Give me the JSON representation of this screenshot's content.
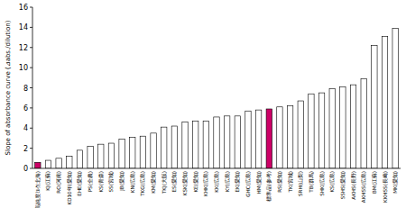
{
  "chart_data": {
    "type": "bar",
    "y_label": "Slope of absorbance curve (⊿abs./dilution)",
    "categories": [
      "高純度ﾐﾙｸ(北海)",
      "KJ(江蘇)",
      "RO(河南)",
      "KD10年(愛知)",
      "EHE(愛知)",
      "PS(全農)",
      "KS(青森)",
      "SS(宮城)",
      "JB(愛知)",
      "KN(広島)",
      "TKG(広島)",
      "KM(愛知)",
      "TKJ(大阪)",
      "ES(愛知)",
      "KSK(愛知)",
      "KE(愛知)",
      "KHK(広島)",
      "KK(広島)",
      "KY(広島)",
      "EK(愛知)",
      "GHC(広島)",
      "HM(愛知)",
      "標準品(参考)",
      "RS(愛知)",
      "TK(宮城)",
      "SRH(山梨)",
      "TB(群馬)",
      "SHK(広島)",
      "KS(広島)",
      "SSHS(愛知)",
      "AKHS(長野)",
      "AKHSS(広島)",
      "BM(江蘇)",
      "KKHSS(長崎)",
      "MK(愛知)"
    ],
    "values": [
      0.6,
      0.8,
      1.0,
      1.2,
      1.8,
      2.2,
      2.4,
      2.5,
      2.9,
      3.1,
      3.2,
      3.5,
      4.1,
      4.2,
      4.6,
      4.7,
      4.7,
      5.1,
      5.2,
      5.2,
      5.7,
      5.8,
      5.9,
      6.1,
      6.2,
      6.7,
      7.4,
      7.5,
      7.9,
      8.1,
      8.3,
      8.9,
      12.2,
      13.1,
      13.9
    ],
    "colors": [
      "#cc0066",
      "#ffffff",
      "#ffffff",
      "#ffffff",
      "#ffffff",
      "#ffffff",
      "#ffffff",
      "#ffffff",
      "#ffffff",
      "#ffffff",
      "#ffffff",
      "#ffffff",
      "#ffffff",
      "#ffffff",
      "#ffffff",
      "#ffffff",
      "#ffffff",
      "#ffffff",
      "#ffffff",
      "#ffffff",
      "#ffffff",
      "#ffffff",
      "#cc0066",
      "#ffffff",
      "#ffffff",
      "#ffffff",
      "#ffffff",
      "#ffffff",
      "#ffffff",
      "#ffffff",
      "#ffffff",
      "#ffffff",
      "#ffffff",
      "#ffffff",
      "#ffffff"
    ],
    "ylim": [
      0,
      16
    ],
    "yticks": [
      0,
      2,
      4,
      6,
      8,
      10,
      12,
      14,
      16
    ],
    "grid": false
  }
}
